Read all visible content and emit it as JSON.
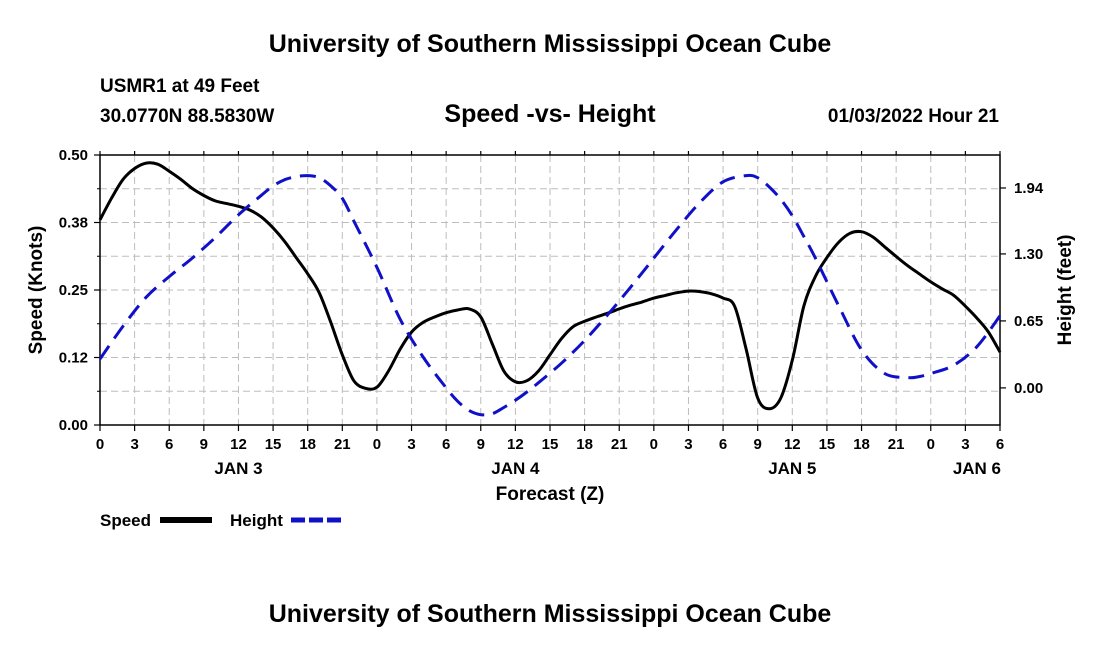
{
  "header": {
    "title": "University of Southern Mississippi Ocean Cube",
    "station": "USMR1 at 49 Feet",
    "coords": "30.0770N  88.5830W",
    "chart_title": "Speed -vs- Height",
    "datetime": "01/03/2022 Hour 21"
  },
  "footer": {
    "title": "University of Southern Mississippi Ocean Cube"
  },
  "legend": {
    "speed_label": "Speed",
    "height_label": "Height"
  },
  "chart_data": {
    "type": "line",
    "title": "Speed -vs- Height",
    "xlabel": "Forecast (Z)",
    "ylabel_left": "Speed (Knots)",
    "ylabel_right": "Height (feet)",
    "x_range": [
      0,
      78
    ],
    "x_ticks": [
      0,
      3,
      6,
      9,
      12,
      15,
      18,
      21,
      24,
      27,
      30,
      33,
      36,
      39,
      42,
      45,
      48,
      51,
      54,
      57,
      60,
      63,
      66,
      69,
      72,
      75,
      78
    ],
    "x_tick_labels": [
      "0",
      "3",
      "6",
      "9",
      "12",
      "15",
      "18",
      "21",
      "0",
      "3",
      "6",
      "9",
      "12",
      "15",
      "18",
      "21",
      "0",
      "3",
      "6",
      "9",
      "12",
      "15",
      "18",
      "21",
      "0",
      "3",
      "6"
    ],
    "day_labels": [
      {
        "x": 12,
        "label": "JAN 3"
      },
      {
        "x": 36,
        "label": "JAN 4"
      },
      {
        "x": 60,
        "label": "JAN 5"
      },
      {
        "x": 76,
        "label": "JAN 6"
      }
    ],
    "y_left": {
      "min": 0.0,
      "max": 0.5,
      "ticks": [
        0.0,
        0.125,
        0.25,
        0.375,
        0.5
      ],
      "tick_labels": [
        "0.00",
        "0.12",
        "0.25",
        "0.38",
        "0.50"
      ]
    },
    "y_right": {
      "ticks": [
        0.0,
        0.65,
        1.3,
        1.94
      ],
      "tick_labels": [
        "0.00",
        "0.65",
        "1.30",
        "1.94"
      ],
      "min_at_bottom": -0.36,
      "max_at_top": 2.26
    },
    "grid": true,
    "legend_position": "bottom-left",
    "series": [
      {
        "name": "Speed",
        "axis": "left",
        "color": "#000000",
        "dash": "solid",
        "x": [
          0,
          1,
          2,
          3,
          4,
          5,
          6,
          7,
          8,
          9,
          10,
          11,
          12,
          13,
          14,
          15,
          16,
          17,
          18,
          19,
          20,
          21,
          22,
          23,
          24,
          25,
          26,
          27,
          28,
          29,
          30,
          31,
          32,
          33,
          34,
          35,
          36,
          37,
          38,
          39,
          40,
          41,
          42,
          43,
          44,
          45,
          46,
          47,
          48,
          49,
          50,
          51,
          52,
          53,
          54,
          55,
          56,
          57,
          58,
          59,
          60,
          61,
          62,
          63,
          64,
          65,
          66,
          67,
          68,
          69,
          70,
          71,
          72,
          73,
          74,
          75,
          76,
          77,
          78
        ],
        "values": [
          0.38,
          0.42,
          0.455,
          0.475,
          0.485,
          0.483,
          0.47,
          0.455,
          0.438,
          0.425,
          0.415,
          0.41,
          0.405,
          0.398,
          0.385,
          0.365,
          0.34,
          0.31,
          0.28,
          0.245,
          0.19,
          0.13,
          0.082,
          0.068,
          0.07,
          0.1,
          0.14,
          0.172,
          0.19,
          0.2,
          0.208,
          0.213,
          0.215,
          0.2,
          0.15,
          0.1,
          0.08,
          0.082,
          0.1,
          0.13,
          0.16,
          0.182,
          0.192,
          0.2,
          0.207,
          0.215,
          0.222,
          0.228,
          0.235,
          0.24,
          0.245,
          0.248,
          0.247,
          0.243,
          0.235,
          0.22,
          0.14,
          0.05,
          0.03,
          0.05,
          0.12,
          0.22,
          0.275,
          0.31,
          0.338,
          0.355,
          0.358,
          0.348,
          0.33,
          0.312,
          0.295,
          0.28,
          0.265,
          0.252,
          0.24,
          0.22,
          0.198,
          0.172,
          0.135
        ]
      },
      {
        "name": "Height",
        "axis": "right",
        "color": "#1010c8",
        "dash": "dashed",
        "x": [
          0,
          2,
          4,
          6,
          8,
          10,
          12,
          14,
          15,
          16,
          17,
          18,
          19,
          20,
          21,
          22,
          24,
          26,
          28,
          30,
          31,
          32,
          33,
          34,
          35,
          36,
          37,
          38,
          40,
          42,
          44,
          46,
          48,
          50,
          52,
          54,
          56,
          57,
          58,
          59,
          60,
          61,
          62,
          64,
          66,
          68,
          70,
          71,
          72,
          74,
          76,
          78
        ],
        "values": [
          0.28,
          0.6,
          0.88,
          1.08,
          1.26,
          1.46,
          1.68,
          1.87,
          1.96,
          2.02,
          2.05,
          2.06,
          2.04,
          1.96,
          1.84,
          1.62,
          1.17,
          0.67,
          0.3,
          0.0,
          -0.13,
          -0.22,
          -0.26,
          -0.25,
          -0.19,
          -0.12,
          -0.04,
          0.05,
          0.24,
          0.46,
          0.71,
          0.98,
          1.26,
          1.54,
          1.8,
          2.0,
          2.06,
          2.04,
          1.95,
          1.83,
          1.67,
          1.47,
          1.26,
          0.8,
          0.37,
          0.14,
          0.1,
          0.11,
          0.14,
          0.22,
          0.4,
          0.7
        ]
      }
    ]
  }
}
